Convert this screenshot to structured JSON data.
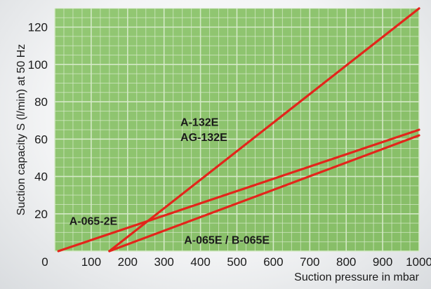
{
  "chart_data": {
    "type": "line",
    "title": "",
    "xlabel": "Suction pressure in mbar",
    "ylabel": "Suction capacity S (l/min) at 50 Hz",
    "xlim": [
      0,
      1000
    ],
    "ylim": [
      0,
      130
    ],
    "x_ticks": [
      "0",
      "100",
      "200",
      "300",
      "400",
      "500",
      "600",
      "700",
      "800",
      "900",
      "1000"
    ],
    "x_tick_values": [
      0,
      100,
      200,
      300,
      400,
      500,
      600,
      700,
      800,
      900,
      1000
    ],
    "y_ticks": [
      "20",
      "40",
      "60",
      "80",
      "100",
      "120"
    ],
    "y_tick_values": [
      20,
      40,
      60,
      80,
      100,
      120
    ],
    "grid": true,
    "plot_background": "#8fc56e",
    "grid_color": "#d8ebcb",
    "line_color": "#e3251b",
    "series": [
      {
        "x": [
          150,
          1000
        ],
        "y": [
          0,
          130
        ]
      },
      {
        "x": [
          150,
          1000
        ],
        "y": [
          0,
          62
        ]
      },
      {
        "x": [
          10,
          1000
        ],
        "y": [
          0,
          65
        ]
      }
    ],
    "annotations": [
      {
        "text": "A-132E",
        "x": 345,
        "y": 67
      },
      {
        "text": "AG-132E",
        "x": 345,
        "y": 59
      },
      {
        "text": "A-065-2E",
        "x": 40,
        "y": 14
      },
      {
        "text": "A-065E / B-065E",
        "x": 355,
        "y": 4
      }
    ]
  }
}
